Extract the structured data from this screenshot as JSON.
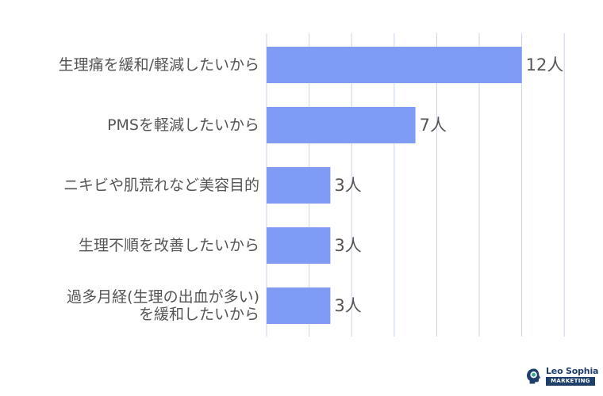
{
  "chart_data": {
    "type": "bar",
    "orientation": "horizontal",
    "categories": [
      [
        "生理痛を緩和/軽減したいから"
      ],
      [
        "PMSを軽減したいから"
      ],
      [
        "ニキビや肌荒れなど美容目的"
      ],
      [
        "生理不順を改善したいから"
      ],
      [
        "過多月経(生理の出血が多い)",
        "を緩和したいから"
      ]
    ],
    "values": [
      12,
      7,
      3,
      3,
      3
    ],
    "value_labels": [
      "12人",
      "7人",
      "3人",
      "3人",
      "3人"
    ],
    "xlim": [
      0,
      14
    ],
    "grid": true,
    "bar_color": "#7f9cf5"
  },
  "logo": {
    "name": "Leo Sophia",
    "sub": "MARKETING",
    "color": "#1f3f6b",
    "accent": "#2ba89a"
  }
}
